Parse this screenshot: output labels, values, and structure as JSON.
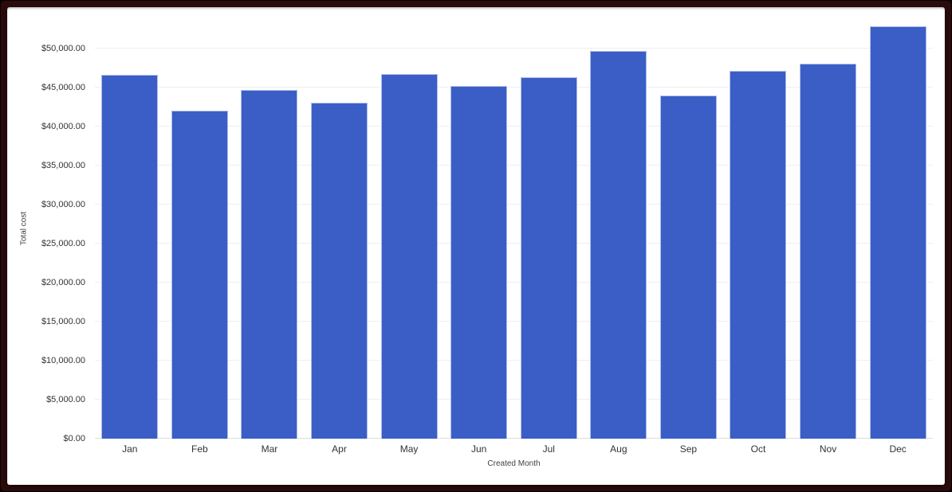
{
  "chart_data": {
    "type": "bar",
    "title": "",
    "categories": [
      "Jan",
      "Feb",
      "Mar",
      "Apr",
      "May",
      "Jun",
      "Jul",
      "Aug",
      "Sep",
      "Oct",
      "Nov",
      "Dec"
    ],
    "values": [
      46600,
      42000,
      44700,
      43100,
      46700,
      45200,
      46300,
      49700,
      44000,
      47100,
      48100,
      52900
    ],
    "series_name": "Total cost",
    "xlabel": "Created Month",
    "ylabel": "Total cost",
    "ylim": [
      0,
      55000
    ],
    "ytick_step": 5000,
    "ytick_labels": [
      "$0.00",
      "$5,000.00",
      "$10,000.00",
      "$15,000.00",
      "$20,000.00",
      "$25,000.00",
      "$30,000.00",
      "$35,000.00",
      "$40,000.00",
      "$45,000.00",
      "$50,000.00"
    ],
    "grid": true,
    "legend": "none"
  },
  "colors": {
    "bar": "#3A5EC6",
    "bar_stroke": "#AFBDEA",
    "frame": "#2B0B0B",
    "frame_edge": "#0A0101",
    "panel": "#FFFFFF",
    "gridline": "#EFEFEF",
    "axis_line": "#DADCE0",
    "tick_text": "#333333",
    "title_text": "#424242"
  }
}
